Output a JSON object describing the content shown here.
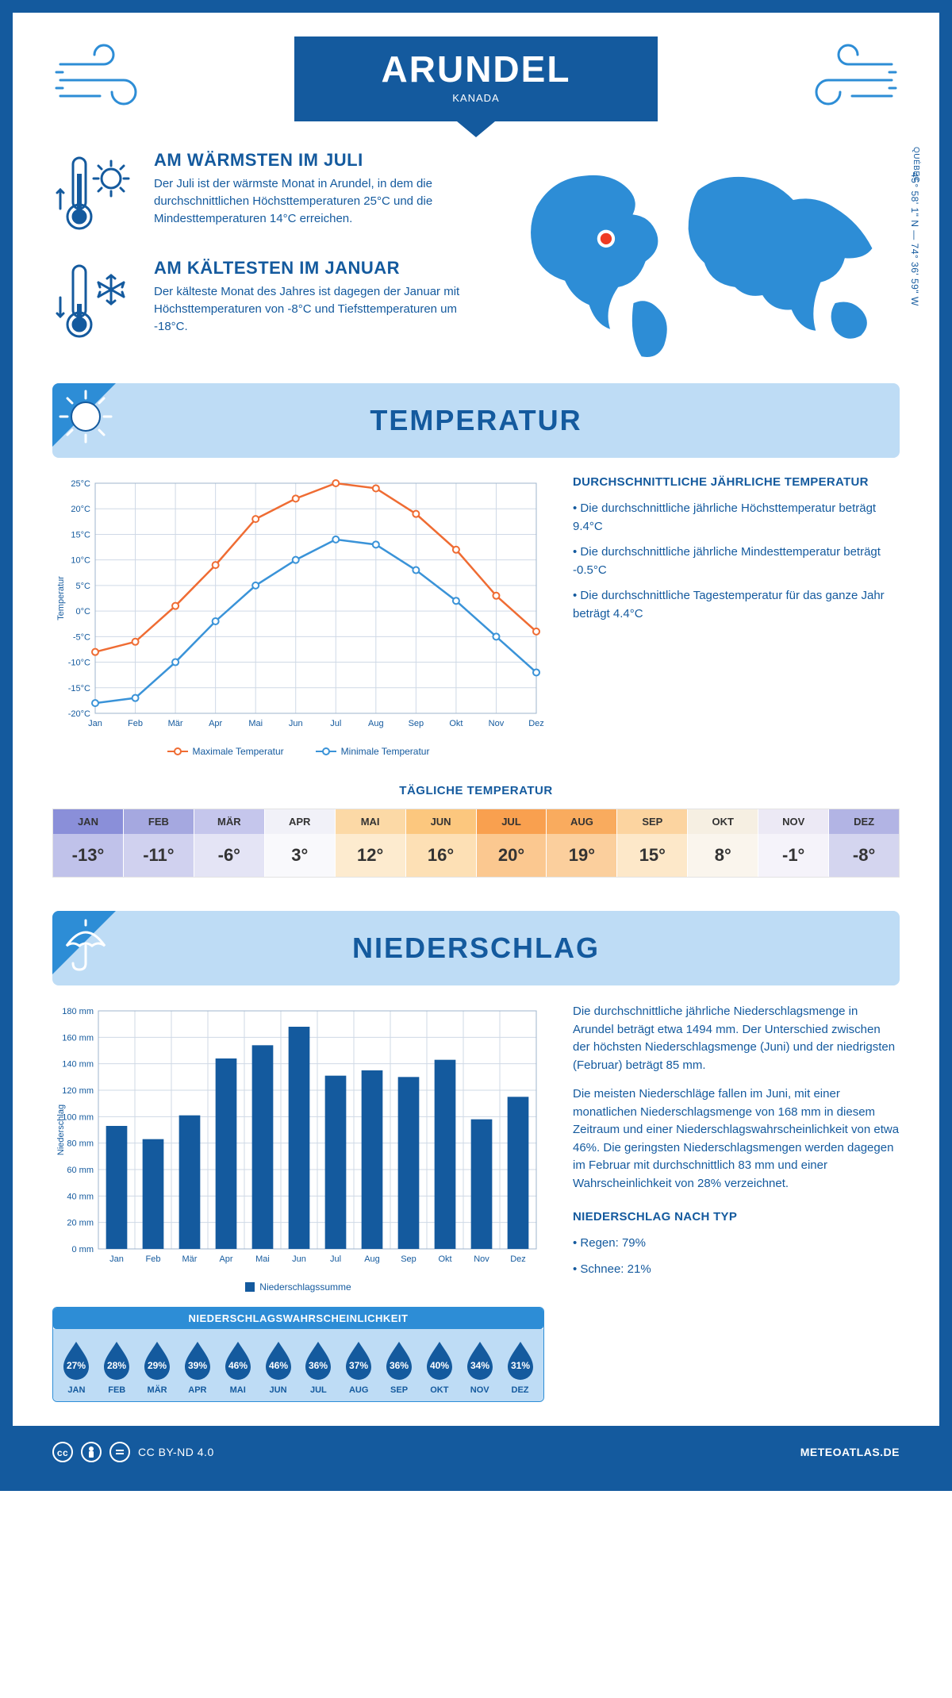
{
  "colors": {
    "primary": "#145a9e",
    "light_blue": "#bedcf5",
    "mid_blue": "#2d8dd6",
    "orange": "#ef6c33",
    "line_blue": "#3a93d8",
    "grid": "#cfd9e6"
  },
  "header": {
    "title": "ARUNDEL",
    "subtitle": "KANADA"
  },
  "location": {
    "coords": "45° 58' 1\" N — 74° 36' 59\" W",
    "region": "QUÉBEC"
  },
  "warm": {
    "title": "AM WÄRMSTEN IM JULI",
    "text": "Der Juli ist der wärmste Monat in Arundel, in dem die durchschnittlichen Höchsttemperaturen 25°C und die Mindesttemperaturen 14°C erreichen."
  },
  "cold": {
    "title": "AM KÄLTESTEN IM JANUAR",
    "text": "Der kälteste Monat des Jahres ist dagegen der Januar mit Höchsttemperaturen von -8°C und Tiefsttemperaturen um -18°C."
  },
  "temp_section": {
    "heading": "TEMPERATUR",
    "side_title": "DURCHSCHNITTLICHE JÄHRLICHE TEMPERATUR",
    "bullets": [
      "• Die durchschnittliche jährliche Höchsttemperatur beträgt 9.4°C",
      "• Die durchschnittliche jährliche Mindesttemperatur beträgt -0.5°C",
      "• Die durchschnittliche Tagestemperatur für das ganze Jahr beträgt 4.4°C"
    ],
    "legend_max": "Maximale Temperatur",
    "legend_min": "Minimale Temperatur",
    "daily_title": "TÄGLICHE TEMPERATUR"
  },
  "temp_chart": {
    "months": [
      "Jan",
      "Feb",
      "Mär",
      "Apr",
      "Mai",
      "Jun",
      "Jul",
      "Aug",
      "Sep",
      "Okt",
      "Nov",
      "Dez"
    ],
    "max": [
      -8,
      -6,
      1,
      9,
      18,
      22,
      25,
      24,
      19,
      12,
      3,
      -4
    ],
    "min": [
      -18,
      -17,
      -10,
      -2,
      5,
      10,
      14,
      13,
      8,
      2,
      -5,
      -12
    ],
    "ymin": -20,
    "ymax": 25,
    "ystep": 5,
    "ylabel": "Temperatur",
    "max_color": "#ef6c33",
    "min_color": "#3a93d8"
  },
  "daily_temp": {
    "months": [
      "JAN",
      "FEB",
      "MÄR",
      "APR",
      "MAI",
      "JUN",
      "JUL",
      "AUG",
      "SEP",
      "OKT",
      "NOV",
      "DEZ"
    ],
    "values": [
      "-13°",
      "-11°",
      "-6°",
      "3°",
      "12°",
      "16°",
      "20°",
      "19°",
      "15°",
      "8°",
      "-1°",
      "-8°"
    ],
    "head_colors": [
      "#8a8fd9",
      "#a5a8e0",
      "#c5c6ec",
      "#f1f1f8",
      "#fcd9a6",
      "#fcc77e",
      "#f9a04f",
      "#f9ab5e",
      "#fcd4a0",
      "#f6efe2",
      "#ece9f5",
      "#b2b4e4"
    ],
    "body_colors": [
      "#c0c2ea",
      "#d0d1ef",
      "#e4e4f5",
      "#f9f9fc",
      "#fdebcf",
      "#fde0b5",
      "#fbc890",
      "#fbcf9d",
      "#fde8c9",
      "#faf5ed",
      "#f5f3fa",
      "#d4d5ef"
    ]
  },
  "precip_section": {
    "heading": "NIEDERSCHLAG",
    "para1": "Die durchschnittliche jährliche Niederschlagsmenge in Arundel beträgt etwa 1494 mm. Der Unterschied zwischen der höchsten Niederschlagsmenge (Juni) und der niedrigsten (Februar) beträgt 85 mm.",
    "para2": "Die meisten Niederschläge fallen im Juni, mit einer monatlichen Niederschlagsmenge von 168 mm in diesem Zeitraum und einer Niederschlagswahrscheinlichkeit von etwa 46%. Die geringsten Niederschlagsmengen werden dagegen im Februar mit durchschnittlich 83 mm und einer Wahrscheinlichkeit von 28% verzeichnet.",
    "type_title": "NIEDERSCHLAG NACH TYP",
    "type_rain": "• Regen: 79%",
    "type_snow": "• Schnee: 21%"
  },
  "precip_chart": {
    "months": [
      "Jan",
      "Feb",
      "Mär",
      "Apr",
      "Mai",
      "Jun",
      "Jul",
      "Aug",
      "Sep",
      "Okt",
      "Nov",
      "Dez"
    ],
    "values": [
      93,
      83,
      101,
      144,
      154,
      168,
      131,
      135,
      130,
      143,
      98,
      115
    ],
    "ymax": 180,
    "ystep": 20,
    "ylabel": "Niederschlag",
    "legend": "Niederschlagssumme",
    "bar_color": "#145a9e"
  },
  "precip_prob": {
    "title": "NIEDERSCHLAGSWAHRSCHEINLICHKEIT",
    "months": [
      "JAN",
      "FEB",
      "MÄR",
      "APR",
      "MAI",
      "JUN",
      "JUL",
      "AUG",
      "SEP",
      "OKT",
      "NOV",
      "DEZ"
    ],
    "values": [
      "27%",
      "28%",
      "29%",
      "39%",
      "46%",
      "46%",
      "36%",
      "37%",
      "36%",
      "40%",
      "34%",
      "31%"
    ]
  },
  "footer": {
    "license": "CC BY-ND 4.0",
    "site": "METEOATLAS.DE"
  }
}
